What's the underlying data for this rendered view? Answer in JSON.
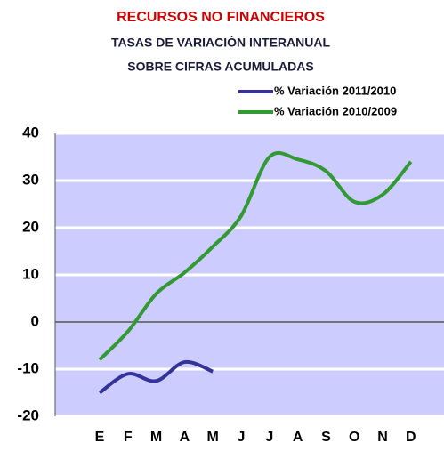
{
  "chart_data": {
    "type": "line",
    "title": "RECURSOS NO FINANCIEROS",
    "subtitle": [
      "TASAS DE VARIACIÓN INTERANUAL",
      "SOBRE CIFRAS ACUMULADAS"
    ],
    "categories": [
      "E",
      "F",
      "M",
      "A",
      "M",
      "J",
      "J",
      "A",
      "S",
      "O",
      "N",
      "D"
    ],
    "series": [
      {
        "name": "% Variación 2011/2010",
        "color": "#333399",
        "values": [
          -15,
          -11,
          -12.5,
          -8.5,
          -10.5,
          null,
          null,
          null,
          null,
          null,
          null,
          null
        ]
      },
      {
        "name": "% Variación 2010/2009",
        "color": "#339933",
        "values": [
          -8,
          -2,
          6,
          10.5,
          16,
          22.5,
          35,
          34.5,
          32,
          25.5,
          27,
          34
        ]
      }
    ],
    "ylim": [
      -20,
      40
    ],
    "yticks": [
      -20,
      -10,
      0,
      10,
      20,
      30,
      40
    ],
    "grid": true,
    "background": "#ccccff",
    "title_color": "#cc0000",
    "subtitle_color": "#1a1a3a"
  }
}
